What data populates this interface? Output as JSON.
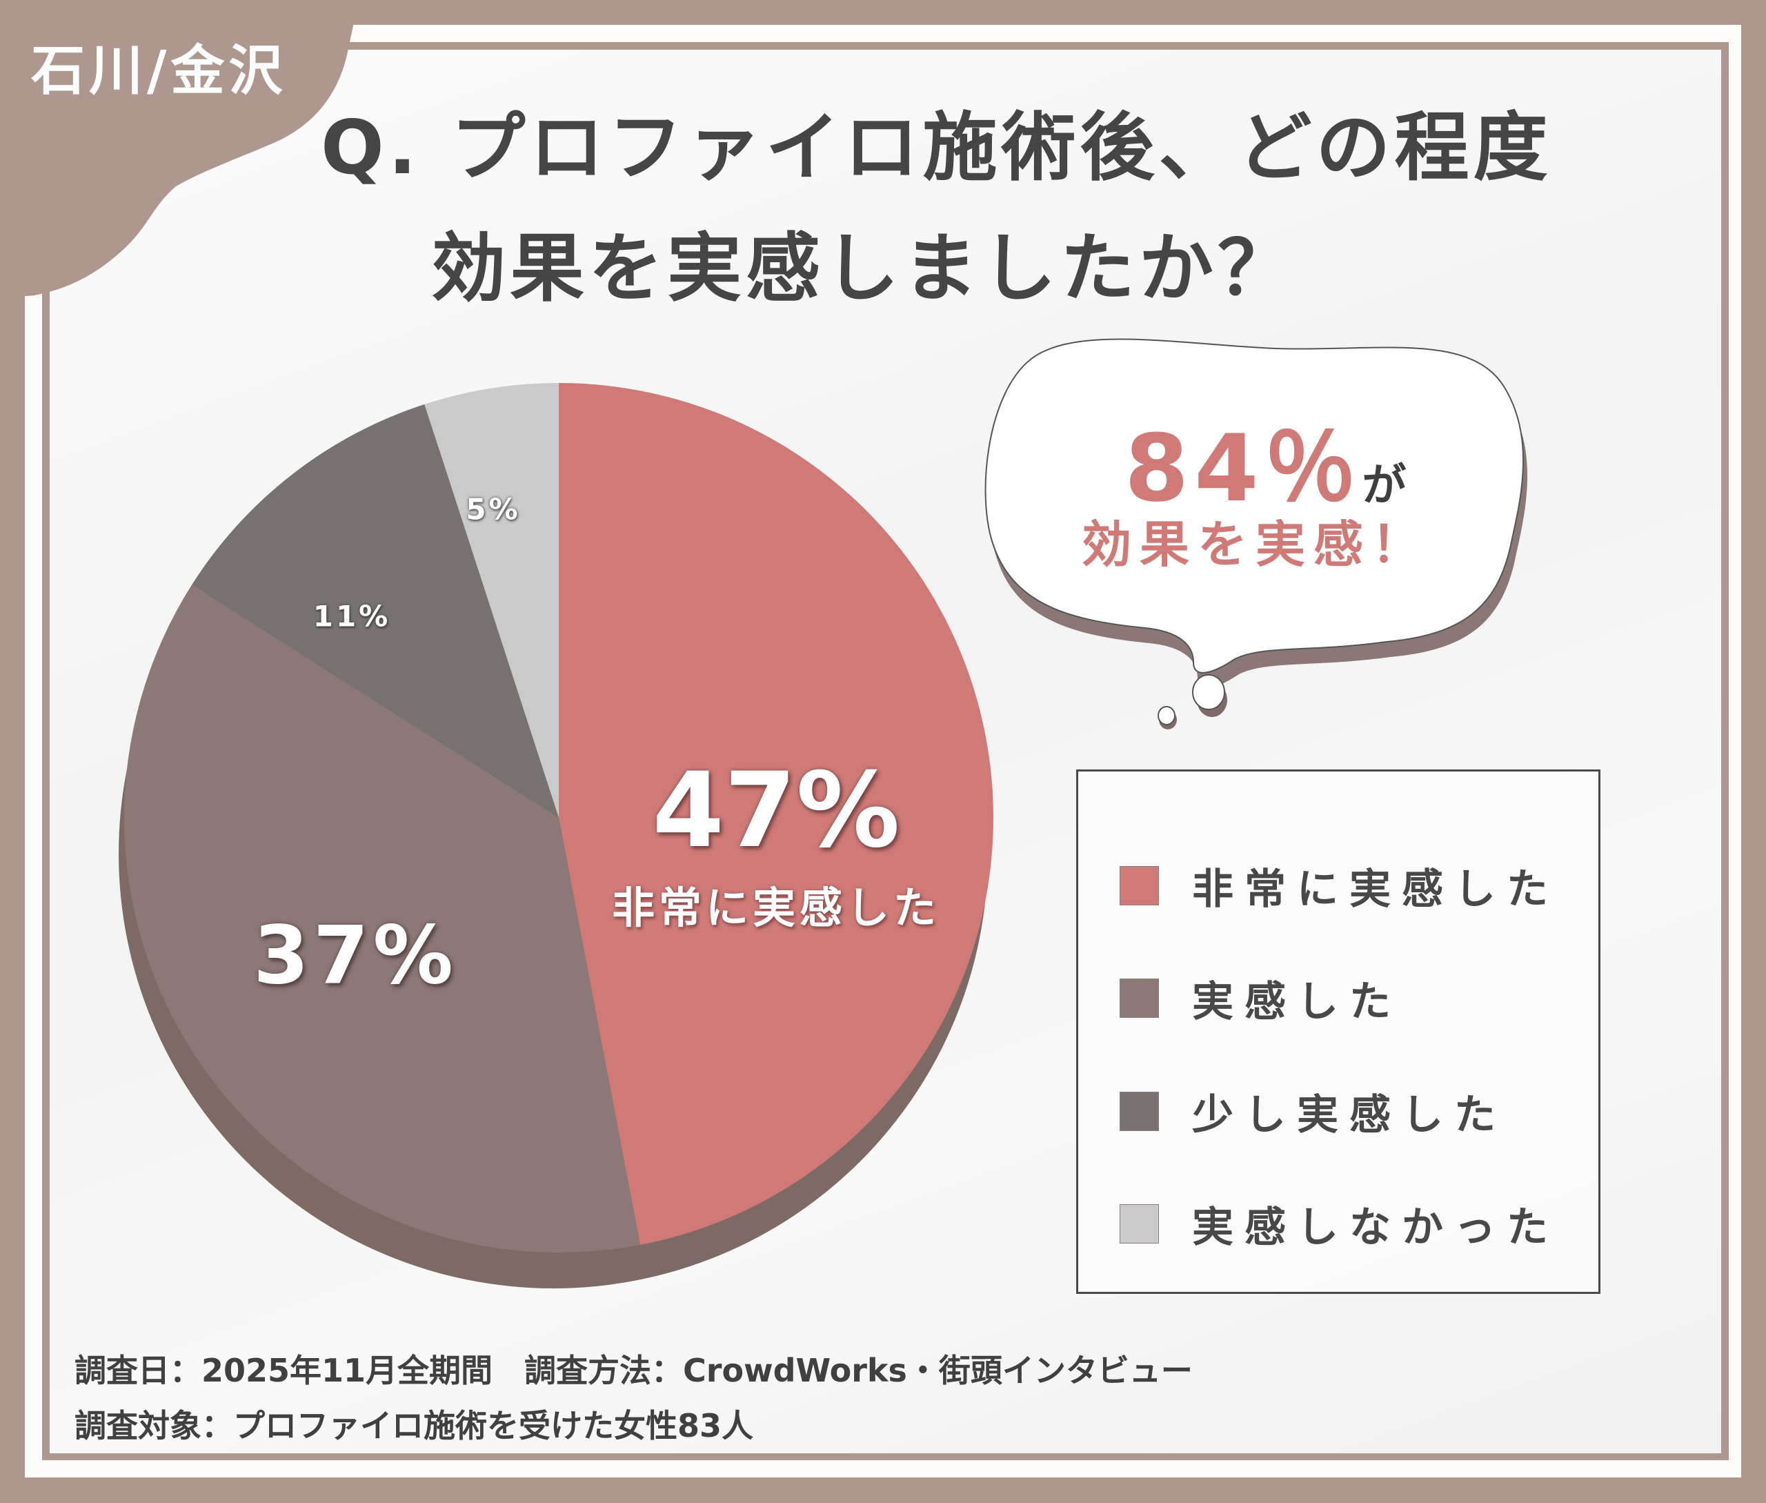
{
  "region_tag": "石川/金沢",
  "title": {
    "line1": "Q. プロファイロ施術後、どの程度",
    "line2": "効果を実感しましたか？"
  },
  "callout": {
    "big": "84％",
    "particle": "が",
    "sub": "効果を実感！"
  },
  "colors": {
    "frame": "#ad978e",
    "very_much": "#cf7a77",
    "felt": "#8b7877",
    "slightly": "#77726f",
    "not": "#cacaca",
    "extrusion": "#7d6a65",
    "accent_text": "#cf7a77"
  },
  "pie_labels": {
    "very_much_value": "47%",
    "very_much_label": "非常に実感した",
    "felt_value": "37%",
    "slightly_value": "11%",
    "not_value": "5%"
  },
  "legend": {
    "items": [
      {
        "label": "非常に実感した",
        "color": "#cf7a77"
      },
      {
        "label": "実感した",
        "color": "#8b7877"
      },
      {
        "label": "少し実感した",
        "color": "#77726f"
      },
      {
        "label": "実感しなかった",
        "color": "#cacaca"
      }
    ]
  },
  "footer": {
    "line1": "調査日：2025年11月全期間　調査方法：CrowdWorks・街頭インタビュー",
    "line2": "調査対象：プロファイロ施術を受けた女性83人"
  },
  "chart_data": {
    "type": "pie",
    "title": "Q. プロファイロ施術後、どの程度効果を実感しましたか？",
    "categories": [
      "非常に実感した",
      "実感した",
      "少し実感した",
      "実感しなかった"
    ],
    "values": [
      47,
      37,
      11,
      5
    ],
    "unit": "%",
    "colors": [
      "#cf7a77",
      "#8b7877",
      "#77726f",
      "#cacaca"
    ],
    "legend_position": "right",
    "start_angle": "12 o'clock, clockwise",
    "annotation": "84％が効果を実感！",
    "sample_size": 83
  }
}
